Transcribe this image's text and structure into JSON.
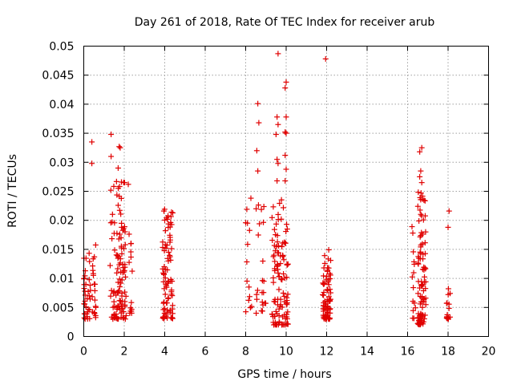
{
  "chart_data": {
    "type": "scatter",
    "title": "Day 261 of 2018, Rate Of TEC Index for receiver arub",
    "xlabel": "GPS time / hours",
    "ylabel": "ROTI / TECUs",
    "xlim": [
      0,
      20
    ],
    "ylim": [
      0,
      0.05
    ],
    "grid": true,
    "marker": "plus",
    "marker_color": "#e00000",
    "x_ticks": [
      "0",
      "2",
      "4",
      "6",
      "8",
      "10",
      "12",
      "14",
      "16",
      "18",
      "20"
    ],
    "y_ticks": [
      "0",
      "0.005",
      "0.01",
      "0.015",
      "0.02",
      "0.025",
      "0.03",
      "0.035",
      "0.04",
      "0.045",
      "0.05"
    ],
    "clusters": [
      {
        "x_start": 0.0,
        "x_end": 0.6,
        "y_min": 0.003,
        "y_max": 0.016,
        "count": 55
      },
      {
        "x_start": 1.3,
        "x_end": 2.1,
        "y_min": 0.003,
        "y_max": 0.027,
        "count": 110
      },
      {
        "x_start": 2.2,
        "x_end": 2.4,
        "y_min": 0.004,
        "y_max": 0.018,
        "count": 14
      },
      {
        "x_start": 3.9,
        "x_end": 4.4,
        "y_min": 0.003,
        "y_max": 0.022,
        "count": 85
      },
      {
        "x_start": 8.0,
        "x_end": 8.3,
        "y_min": 0.004,
        "y_max": 0.024,
        "count": 14
      },
      {
        "x_start": 8.5,
        "x_end": 9.0,
        "y_min": 0.004,
        "y_max": 0.023,
        "count": 22
      },
      {
        "x_start": 9.3,
        "x_end": 10.1,
        "y_min": 0.002,
        "y_max": 0.024,
        "count": 110
      },
      {
        "x_start": 11.8,
        "x_end": 12.2,
        "y_min": 0.003,
        "y_max": 0.015,
        "count": 75
      },
      {
        "x_start": 16.2,
        "x_end": 16.4,
        "y_min": 0.003,
        "y_max": 0.019,
        "count": 14
      },
      {
        "x_start": 16.5,
        "x_end": 16.9,
        "y_min": 0.002,
        "y_max": 0.025,
        "count": 95
      },
      {
        "x_start": 17.9,
        "x_end": 18.1,
        "y_min": 0.003,
        "y_max": 0.009,
        "count": 16
      }
    ],
    "points": [
      {
        "x": 0.4,
        "y": 0.0335
      },
      {
        "x": 0.4,
        "y": 0.0298
      },
      {
        "x": 1.35,
        "y": 0.0348
      },
      {
        "x": 1.35,
        "y": 0.031
      },
      {
        "x": 1.75,
        "y": 0.0327
      },
      {
        "x": 1.8,
        "y": 0.0325
      },
      {
        "x": 1.7,
        "y": 0.029
      },
      {
        "x": 2.2,
        "y": 0.0262
      },
      {
        "x": 8.6,
        "y": 0.0401
      },
      {
        "x": 8.65,
        "y": 0.0368
      },
      {
        "x": 8.55,
        "y": 0.032
      },
      {
        "x": 8.6,
        "y": 0.0285
      },
      {
        "x": 9.6,
        "y": 0.0487
      },
      {
        "x": 9.55,
        "y": 0.0378
      },
      {
        "x": 9.6,
        "y": 0.0365
      },
      {
        "x": 9.5,
        "y": 0.0348
      },
      {
        "x": 9.55,
        "y": 0.0305
      },
      {
        "x": 9.6,
        "y": 0.0298
      },
      {
        "x": 9.55,
        "y": 0.0268
      },
      {
        "x": 10.0,
        "y": 0.0438
      },
      {
        "x": 9.95,
        "y": 0.0428
      },
      {
        "x": 10.0,
        "y": 0.0378
      },
      {
        "x": 9.95,
        "y": 0.0352
      },
      {
        "x": 10.0,
        "y": 0.035
      },
      {
        "x": 9.95,
        "y": 0.0312
      },
      {
        "x": 10.0,
        "y": 0.0288
      },
      {
        "x": 9.95,
        "y": 0.0268
      },
      {
        "x": 11.95,
        "y": 0.0478
      },
      {
        "x": 16.7,
        "y": 0.0325
      },
      {
        "x": 16.6,
        "y": 0.0318
      },
      {
        "x": 16.65,
        "y": 0.0285
      },
      {
        "x": 16.6,
        "y": 0.0275
      },
      {
        "x": 16.7,
        "y": 0.0265
      },
      {
        "x": 18.05,
        "y": 0.0216
      },
      {
        "x": 18.0,
        "y": 0.0188
      }
    ]
  }
}
